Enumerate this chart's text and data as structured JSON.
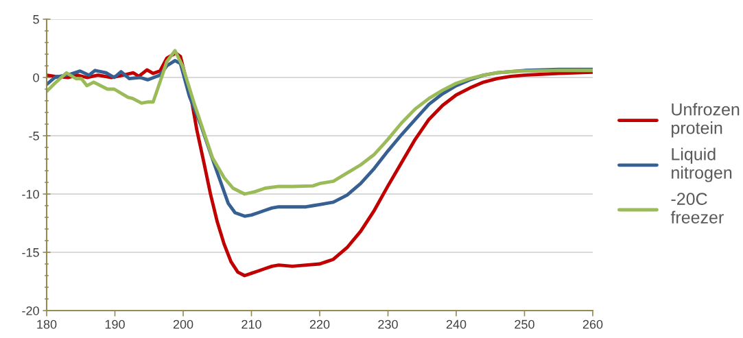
{
  "chart_data": {
    "type": "line",
    "xlim": [
      180,
      260
    ],
    "xticks": [
      180,
      190,
      200,
      210,
      220,
      230,
      240,
      250,
      260
    ],
    "ylim": [
      -20,
      5
    ],
    "yticks": [
      -20,
      -15,
      -10,
      -5,
      0,
      5
    ],
    "grid": "y",
    "legend": "right",
    "marker": "none",
    "line_style": "solid",
    "series": [
      {
        "name": "Unfrozen\nprotein",
        "color": "#c00000",
        "x": [
          180,
          181.2,
          183.2,
          184.5,
          185.9,
          187.5,
          189.5,
          191.2,
          192.7,
          193.5,
          194.7,
          195.6,
          196.6,
          197.6,
          198.9,
          199.6,
          201.3,
          202,
          203,
          204,
          205,
          206,
          207,
          208,
          209,
          210,
          211,
          212,
          213,
          214,
          216,
          218,
          220,
          221,
          222,
          223,
          224,
          226,
          228,
          230,
          232,
          234,
          236,
          238,
          240,
          242,
          244,
          246,
          248,
          250,
          255,
          260
        ],
        "values": [
          0.2,
          0.1,
          0,
          0.2,
          0,
          0.2,
          0,
          0.2,
          0.4,
          0.1,
          0.65,
          0.35,
          0.55,
          1.65,
          2.1,
          1.8,
          -2.2,
          -4.5,
          -7.2,
          -10,
          -12.4,
          -14.3,
          -15.8,
          -16.7,
          -17,
          -16.8,
          -16.6,
          -16.4,
          -16.2,
          -16.1,
          -16.2,
          -16.1,
          -16,
          -15.8,
          -15.6,
          -15.1,
          -14.6,
          -13.2,
          -11.4,
          -9.3,
          -7.3,
          -5.3,
          -3.6,
          -2.4,
          -1.5,
          -0.9,
          -0.4,
          -0.1,
          0.1,
          0.2,
          0.35,
          0.45
        ]
      },
      {
        "name": "Liquid\nnitrogen",
        "color": "#376092",
        "x": [
          180,
          181.2,
          183.6,
          184.9,
          186.2,
          187.1,
          188.7,
          189.9,
          190.9,
          192.1,
          193.7,
          194.8,
          196.6,
          197.6,
          198.8,
          199.6,
          200.9,
          202.6,
          204.3,
          206.6,
          207.6,
          209,
          210,
          211,
          212,
          213,
          214,
          216,
          218,
          219,
          220,
          222,
          224,
          226,
          228,
          230,
          232,
          234,
          236,
          238,
          240,
          242,
          244,
          246,
          248,
          250,
          255,
          260
        ],
        "values": [
          -0.6,
          0,
          0.3,
          0.55,
          0.2,
          0.6,
          0.4,
          0,
          0.5,
          -0.1,
          0,
          -0.2,
          0.2,
          1.0,
          1.45,
          1.2,
          -1.6,
          -4.1,
          -7,
          -10.8,
          -11.6,
          -11.9,
          -11.8,
          -11.6,
          -11.4,
          -11.2,
          -11.1,
          -11.1,
          -11.1,
          -11.0,
          -10.9,
          -10.7,
          -10.1,
          -9.1,
          -7.8,
          -6.3,
          -4.9,
          -3.6,
          -2.3,
          -1.4,
          -0.7,
          -0.2,
          0.2,
          0.4,
          0.5,
          0.6,
          0.7,
          0.7
        ]
      },
      {
        "name": "-20C\nfreezer",
        "color": "#9bbb59",
        "x": [
          180,
          181.2,
          182.9,
          184.3,
          185.1,
          185.9,
          186.9,
          188.9,
          189.9,
          191.9,
          192.6,
          193.9,
          194.9,
          195.6,
          196.6,
          197.6,
          198.8,
          199.9,
          201.6,
          204.3,
          206,
          207.3,
          209,
          210.5,
          212,
          214,
          216,
          219,
          220,
          222,
          224,
          226,
          228,
          229.4,
          230,
          232,
          234,
          236,
          238,
          240,
          242,
          244,
          246,
          248,
          250,
          255,
          260
        ],
        "values": [
          -1.2,
          -0.5,
          0.4,
          -0.1,
          -0.1,
          -0.7,
          -0.4,
          -1.0,
          -1.0,
          -1.7,
          -1.8,
          -2.2,
          -2.1,
          -2.1,
          -0.4,
          1.35,
          2.3,
          1.0,
          -2.2,
          -6.9,
          -8.6,
          -9.5,
          -10.0,
          -9.8,
          -9.5,
          -9.35,
          -9.35,
          -9.3,
          -9.1,
          -8.9,
          -8.2,
          -7.5,
          -6.6,
          -5.7,
          -5.3,
          -3.9,
          -2.7,
          -1.8,
          -1.1,
          -0.5,
          -0.1,
          0.2,
          0.4,
          0.5,
          0.55,
          0.6,
          0.6
        ]
      }
    ]
  }
}
